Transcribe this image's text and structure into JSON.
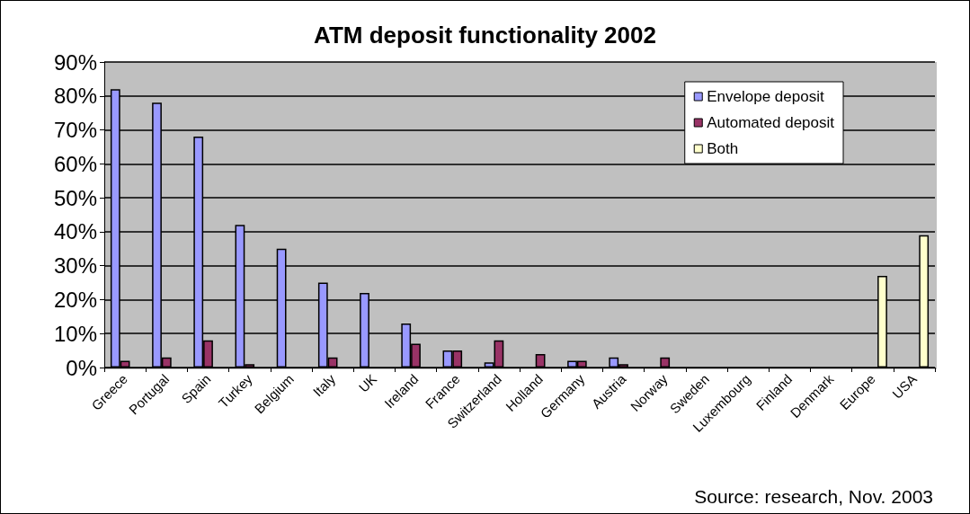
{
  "chart_data": {
    "type": "bar",
    "title": "ATM deposit functionality 2002",
    "categories": [
      "Greece",
      "Portugal",
      "Spain",
      "Turkey",
      "Belgium",
      "Italy",
      "UK",
      "Ireland",
      "France",
      "Switzerland",
      "Holland",
      "Germany",
      "Austria",
      "Norway",
      "Sweden",
      "Luxembourg",
      "Finland",
      "Denmark",
      "Europe",
      "USA"
    ],
    "series": [
      {
        "name": "Envelope deposit",
        "color": "#9999ff",
        "values": [
          82,
          78,
          68,
          42,
          35,
          25,
          22,
          13,
          5,
          1.5,
          null,
          2,
          3,
          null,
          null,
          null,
          null,
          null,
          null,
          null
        ]
      },
      {
        "name": "Automated deposit",
        "color": "#993366",
        "values": [
          2,
          3,
          8,
          1,
          null,
          3,
          null,
          7,
          5,
          8,
          4,
          2,
          1,
          3,
          null,
          null,
          null,
          null,
          null,
          null
        ]
      },
      {
        "name": "Both",
        "color": "#ffffcc",
        "values": [
          null,
          null,
          null,
          null,
          null,
          null,
          null,
          null,
          null,
          null,
          null,
          null,
          null,
          null,
          null,
          null,
          null,
          null,
          27,
          39
        ]
      }
    ],
    "ylim": [
      0,
      90
    ],
    "yticks": [
      {
        "value": 0,
        "label": "0%"
      },
      {
        "value": 10,
        "label": "10%"
      },
      {
        "value": 20,
        "label": "20%"
      },
      {
        "value": 30,
        "label": "30%"
      },
      {
        "value": 40,
        "label": "40%"
      },
      {
        "value": 50,
        "label": "50%"
      },
      {
        "value": 60,
        "label": "60%"
      },
      {
        "value": 70,
        "label": "70%"
      },
      {
        "value": 80,
        "label": "80%"
      },
      {
        "value": 90,
        "label": "90%"
      }
    ],
    "grid": "y",
    "legend": "top right",
    "annotations": [
      "Source: research, Nov. 2003"
    ]
  }
}
